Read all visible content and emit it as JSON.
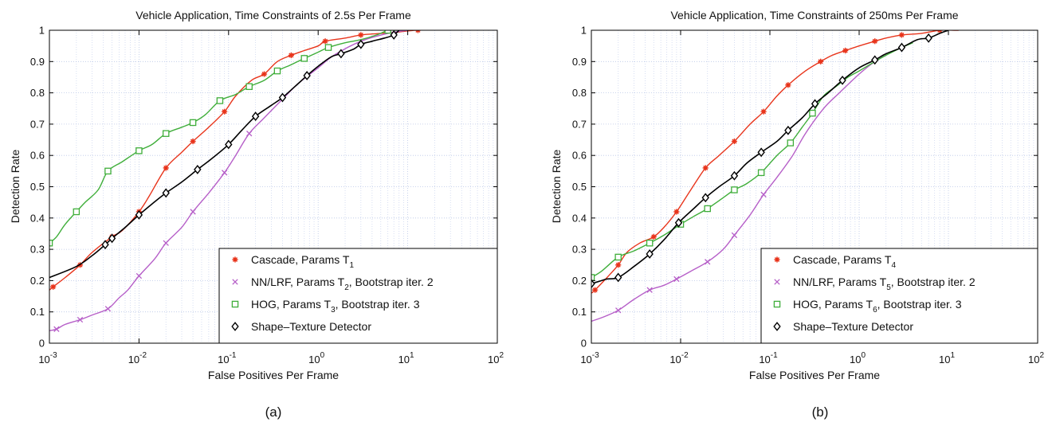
{
  "chart_data": [
    {
      "type": "line",
      "panel_label": "(a)",
      "title": "Vehicle Application, Time Constraints of 2.5s Per Frame",
      "xlabel": "False Positives Per Frame",
      "ylabel": "Detection Rate",
      "xscale": "log",
      "xlim": [
        0.001,
        100
      ],
      "ylim": [
        0,
        1
      ],
      "x_ticks": [
        {
          "v": 0.001,
          "base": "10",
          "exp": "-3"
        },
        {
          "v": 0.01,
          "base": "10",
          "exp": "-2"
        },
        {
          "v": 0.1,
          "base": "10",
          "exp": "-1"
        },
        {
          "v": 1,
          "base": "10",
          "exp": "0"
        },
        {
          "v": 10,
          "base": "10",
          "exp": "1"
        },
        {
          "v": 100,
          "base": "10",
          "exp": "2"
        }
      ],
      "y_ticks": [
        "0",
        "0.1",
        "0.2",
        "0.3",
        "0.4",
        "0.5",
        "0.6",
        "0.7",
        "0.8",
        "0.9",
        "1"
      ],
      "grid": true,
      "legend_position": "bottom-right",
      "series": [
        {
          "name": "Cascade, Params T",
          "sub": "1",
          "suffix": "",
          "color": "#e8351c",
          "marker": "star",
          "x": [
            0.001,
            0.0011,
            0.0015,
            0.0022,
            0.003,
            0.005,
            0.0065,
            0.01,
            0.013,
            0.02,
            0.03,
            0.04,
            0.06,
            0.09,
            0.12,
            0.18,
            0.25,
            0.35,
            0.5,
            0.7,
            1.0,
            1.2,
            2.0,
            3.0,
            5.0,
            8.0,
            12.0,
            13.0
          ],
          "y": [
            0.17,
            0.18,
            0.21,
            0.25,
            0.29,
            0.34,
            0.36,
            0.42,
            0.47,
            0.56,
            0.61,
            0.645,
            0.69,
            0.74,
            0.79,
            0.84,
            0.86,
            0.9,
            0.92,
            0.935,
            0.95,
            0.965,
            0.975,
            0.985,
            0.99,
            0.995,
            1.0,
            1.0
          ],
          "marker_idx": [
            1,
            3,
            5,
            7,
            9,
            11,
            13,
            16,
            18,
            21,
            23,
            27
          ]
        },
        {
          "name": "NN/LRF, Params T",
          "sub": "2",
          "suffix": ", Bootstrap iter. 2",
          "color": "#b65fc8",
          "marker": "x",
          "x": [
            0.001,
            0.0012,
            0.0015,
            0.0022,
            0.003,
            0.0045,
            0.006,
            0.0075,
            0.01,
            0.015,
            0.02,
            0.03,
            0.04,
            0.06,
            0.09,
            0.12,
            0.17,
            0.25,
            0.4,
            0.6,
            1.0,
            1.5,
            3.0,
            6.0,
            10.0
          ],
          "y": [
            0.04,
            0.045,
            0.06,
            0.075,
            0.09,
            0.11,
            0.145,
            0.17,
            0.215,
            0.27,
            0.32,
            0.37,
            0.42,
            0.48,
            0.545,
            0.6,
            0.67,
            0.72,
            0.78,
            0.83,
            0.88,
            0.92,
            0.965,
            0.99,
            1.0
          ],
          "marker_idx": [
            1,
            3,
            5,
            8,
            10,
            12,
            14,
            16
          ]
        },
        {
          "name": "HOG, Params T",
          "sub": "3",
          "suffix": ", Bootstrap iter. 3",
          "color": "#3fae3a",
          "marker": "square",
          "x": [
            0.001,
            0.0012,
            0.0015,
            0.002,
            0.0025,
            0.0035,
            0.0045,
            0.0065,
            0.01,
            0.014,
            0.02,
            0.03,
            0.04,
            0.055,
            0.08,
            0.12,
            0.17,
            0.25,
            0.35,
            0.5,
            0.7,
            1.0,
            1.3,
            2.0,
            3.0,
            4.5,
            6.0,
            7.0,
            8.0
          ],
          "y": [
            0.32,
            0.34,
            0.38,
            0.42,
            0.45,
            0.49,
            0.55,
            0.58,
            0.615,
            0.635,
            0.67,
            0.69,
            0.705,
            0.73,
            0.775,
            0.795,
            0.82,
            0.84,
            0.87,
            0.89,
            0.91,
            0.93,
            0.945,
            0.96,
            0.97,
            0.985,
            1.0,
            1.0,
            1.0
          ],
          "marker_idx": [
            0,
            3,
            6,
            8,
            10,
            12,
            14,
            16,
            18,
            20,
            22,
            26
          ]
        },
        {
          "name": "Shape–Texture Detector",
          "sub": "",
          "suffix": "",
          "color": "#000000",
          "marker": "diamond",
          "x": [
            0.001,
            0.002,
            0.003,
            0.0042,
            0.005,
            0.007,
            0.01,
            0.014,
            0.02,
            0.03,
            0.045,
            0.065,
            0.1,
            0.14,
            0.2,
            0.3,
            0.4,
            0.55,
            0.75,
            1.0,
            1.4,
            1.8,
            2.5,
            3.0,
            4.0,
            5.5,
            7.0,
            8.0
          ],
          "y": [
            0.21,
            0.245,
            0.28,
            0.315,
            0.335,
            0.37,
            0.41,
            0.445,
            0.48,
            0.515,
            0.555,
            0.59,
            0.635,
            0.68,
            0.725,
            0.76,
            0.785,
            0.82,
            0.855,
            0.885,
            0.915,
            0.925,
            0.94,
            0.955,
            0.965,
            0.975,
            0.985,
            1.0
          ],
          "marker_idx": [
            3,
            4,
            6,
            8,
            10,
            12,
            14,
            16,
            18,
            21,
            23,
            26
          ]
        }
      ]
    },
    {
      "type": "line",
      "panel_label": "(b)",
      "title": "Vehicle Application, Time Constraints of 250ms Per Frame",
      "xlabel": "False Positives Per Frame",
      "ylabel": "Detection Rate",
      "xscale": "log",
      "xlim": [
        0.001,
        100
      ],
      "ylim": [
        0,
        1
      ],
      "x_ticks": [
        {
          "v": 0.001,
          "base": "10",
          "exp": "-3"
        },
        {
          "v": 0.01,
          "base": "10",
          "exp": "-2"
        },
        {
          "v": 0.1,
          "base": "10",
          "exp": "-1"
        },
        {
          "v": 1,
          "base": "10",
          "exp": "0"
        },
        {
          "v": 10,
          "base": "10",
          "exp": "1"
        },
        {
          "v": 100,
          "base": "10",
          "exp": "2"
        }
      ],
      "y_ticks": [
        "0",
        "0.1",
        "0.2",
        "0.3",
        "0.4",
        "0.5",
        "0.6",
        "0.7",
        "0.8",
        "0.9",
        "1"
      ],
      "grid": true,
      "legend_position": "bottom-right",
      "series": [
        {
          "name": "Cascade, Params T",
          "sub": "4",
          "suffix": "",
          "color": "#e8351c",
          "marker": "star",
          "x": [
            0.001,
            0.0011,
            0.0015,
            0.002,
            0.0025,
            0.0035,
            0.005,
            0.0065,
            0.009,
            0.013,
            0.019,
            0.027,
            0.04,
            0.06,
            0.085,
            0.12,
            0.16,
            0.25,
            0.37,
            0.5,
            0.7,
            1.0,
            1.5,
            2.0,
            3.0,
            5.0,
            8.0,
            12.0,
            13.0
          ],
          "y": [
            0.16,
            0.17,
            0.21,
            0.25,
            0.29,
            0.32,
            0.34,
            0.37,
            0.42,
            0.49,
            0.56,
            0.6,
            0.645,
            0.7,
            0.74,
            0.79,
            0.825,
            0.87,
            0.9,
            0.92,
            0.935,
            0.95,
            0.965,
            0.975,
            0.985,
            0.99,
            1.0,
            1.0,
            1.0
          ],
          "marker_idx": [
            1,
            3,
            6,
            8,
            10,
            12,
            14,
            16,
            18,
            20,
            22,
            24,
            26
          ]
        },
        {
          "name": "NN/LRF, Params T",
          "sub": "5",
          "suffix": ", Bootstrap iter. 2",
          "color": "#b65fc8",
          "marker": "x",
          "x": [
            0.001,
            0.0014,
            0.002,
            0.003,
            0.0045,
            0.0065,
            0.009,
            0.013,
            0.02,
            0.03,
            0.04,
            0.06,
            0.085,
            0.12,
            0.18,
            0.25,
            0.4,
            0.6,
            1.0,
            1.5,
            2.0
          ],
          "y": [
            0.07,
            0.085,
            0.105,
            0.14,
            0.17,
            0.185,
            0.205,
            0.23,
            0.26,
            0.3,
            0.345,
            0.41,
            0.475,
            0.53,
            0.6,
            0.67,
            0.75,
            0.8,
            0.86,
            0.9,
            0.92
          ],
          "marker_idx": [
            2,
            4,
            6,
            8,
            10,
            12
          ]
        },
        {
          "name": "HOG, Params T",
          "sub": "6",
          "suffix": ", Bootstrap iter. 3",
          "color": "#3fae3a",
          "marker": "square",
          "x": [
            0.001,
            0.0013,
            0.002,
            0.003,
            0.0045,
            0.0065,
            0.01,
            0.014,
            0.02,
            0.03,
            0.04,
            0.055,
            0.08,
            0.12,
            0.17,
            0.23,
            0.3,
            0.4,
            0.55,
            0.75,
            1.0,
            1.5,
            2.0,
            3.0,
            4.0
          ],
          "y": [
            0.21,
            0.23,
            0.275,
            0.295,
            0.32,
            0.345,
            0.38,
            0.405,
            0.43,
            0.465,
            0.49,
            0.51,
            0.545,
            0.6,
            0.64,
            0.69,
            0.735,
            0.79,
            0.82,
            0.85,
            0.87,
            0.9,
            0.92,
            0.945,
            0.96
          ],
          "marker_idx": [
            0,
            2,
            4,
            6,
            8,
            10,
            12,
            14,
            16
          ]
        },
        {
          "name": "Shape–Texture Detector",
          "sub": "",
          "suffix": "",
          "color": "#000000",
          "marker": "diamond",
          "x": [
            0.001,
            0.0013,
            0.0015,
            0.002,
            0.003,
            0.0045,
            0.0065,
            0.0095,
            0.014,
            0.019,
            0.027,
            0.04,
            0.055,
            0.08,
            0.12,
            0.16,
            0.23,
            0.32,
            0.45,
            0.65,
            1.0,
            1.5,
            2.0,
            3.0,
            4.5,
            6.0,
            8.0,
            10.0
          ],
          "y": [
            0.19,
            0.2,
            0.205,
            0.21,
            0.245,
            0.285,
            0.33,
            0.385,
            0.43,
            0.465,
            0.5,
            0.535,
            0.575,
            0.61,
            0.645,
            0.68,
            0.72,
            0.765,
            0.8,
            0.84,
            0.88,
            0.905,
            0.925,
            0.945,
            0.97,
            0.975,
            0.99,
            1.0
          ],
          "marker_idx": [
            0,
            3,
            5,
            7,
            9,
            11,
            13,
            15,
            17,
            19,
            21,
            23,
            25
          ]
        }
      ]
    }
  ]
}
